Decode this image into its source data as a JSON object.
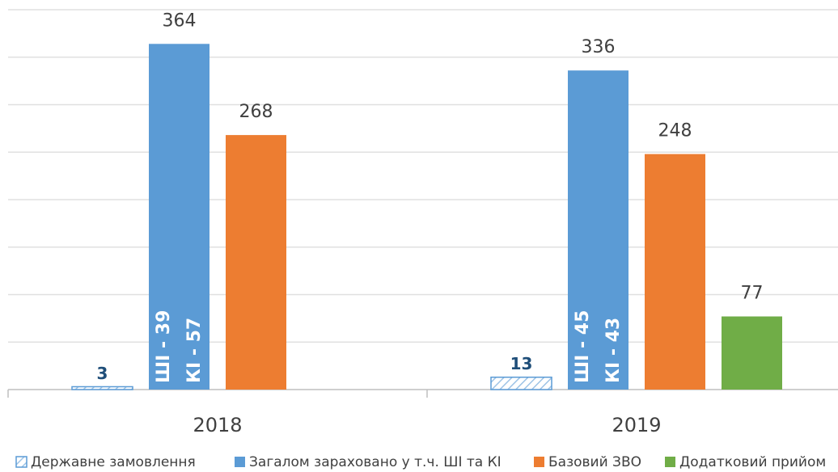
{
  "chart_data": {
    "type": "bar",
    "categories": [
      "2018",
      "2019"
    ],
    "series": [
      {
        "name": "Державне замовлення",
        "color": "#5b9bd5",
        "hatched": true,
        "values": [
          3,
          13
        ]
      },
      {
        "name": "Загалом зараховано у т.ч. ШІ та КІ",
        "color": "#5b9bd5",
        "values": [
          364,
          336
        ]
      },
      {
        "name": "Базовий ЗВО",
        "color": "#ed7d31",
        "values": [
          268,
          248
        ]
      },
      {
        "name": "Додатковий прийом",
        "color": "#70ad47",
        "values": [
          null,
          77
        ]
      }
    ],
    "annotations": [
      [
        "ШІ - 39",
        "КІ - 57"
      ],
      [
        "ШІ - 45",
        "КІ - 43"
      ]
    ],
    "ylim": [
      0,
      400
    ],
    "yticks": [
      0,
      50,
      100,
      150,
      200,
      250,
      300,
      350,
      400
    ],
    "grid": true,
    "legend": "bottom"
  }
}
